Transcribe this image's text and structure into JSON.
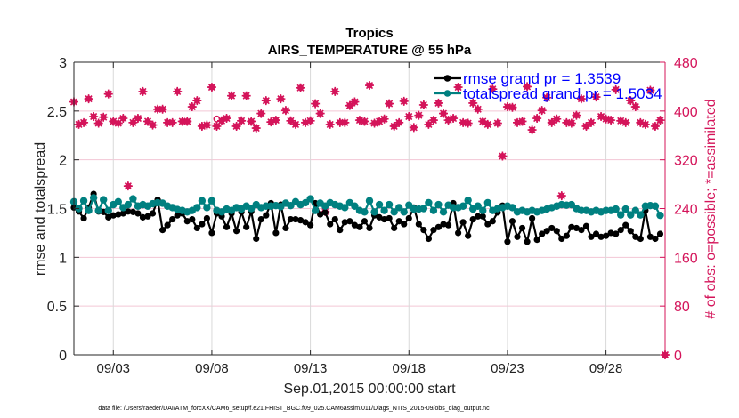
{
  "chart_data": {
    "type": "line",
    "title": "Tropics",
    "subtitle": "AIRS_TEMPERATURE @ 55 hPa",
    "xlabel": "Sep.01,2015 00:00:00 start",
    "ylabel": "rmse and totalspread",
    "ylabel_right": "# of obs: o=possible; *=assimilated",
    "x_units": "days since Sep.01,2015 00:00:00",
    "x_step_days": 0.25,
    "xlim": [
      0,
      30
    ],
    "ylim": [
      0,
      3
    ],
    "ylim_right": [
      0,
      480
    ],
    "grid": true,
    "x_ticks": [
      {
        "day": 2,
        "label": "09/03"
      },
      {
        "day": 7,
        "label": "09/08"
      },
      {
        "day": 12,
        "label": "09/13"
      },
      {
        "day": 17,
        "label": "09/18"
      },
      {
        "day": 22,
        "label": "09/23"
      },
      {
        "day": 27,
        "label": "09/28"
      }
    ],
    "y_ticks": [
      {
        "value": 0,
        "label": "0"
      },
      {
        "value": 0.5,
        "label": "0.5"
      },
      {
        "value": 1,
        "label": "1"
      },
      {
        "value": 1.5,
        "label": "1.5"
      },
      {
        "value": 2,
        "label": "2"
      },
      {
        "value": 2.5,
        "label": "2.5"
      },
      {
        "value": 3,
        "label": "3"
      }
    ],
    "y_right_ticks": [
      {
        "value": 0,
        "label": "0"
      },
      {
        "value": 80,
        "label": "80"
      },
      {
        "value": 160,
        "label": "160"
      },
      {
        "value": 240,
        "label": "240"
      },
      {
        "value": 320,
        "label": "320"
      },
      {
        "value": 400,
        "label": "400"
      },
      {
        "value": 480,
        "label": "480"
      }
    ],
    "legend": {
      "position": "top-right",
      "entries": [
        {
          "label": "rmse grand pr = 1.3539",
          "color": "#000000"
        },
        {
          "label": "totalspread grand pr = 1.5034",
          "color": "#008080"
        }
      ]
    },
    "series": [
      {
        "name": "rmse",
        "color": "#000000",
        "values": [
          1.51,
          1.47,
          1.4,
          1.51,
          1.65,
          1.47,
          1.465,
          1.41,
          1.43,
          1.44,
          1.45,
          1.47,
          1.465,
          1.45,
          1.41,
          1.42,
          1.45,
          1.59,
          1.28,
          1.33,
          1.39,
          1.43,
          1.45,
          1.37,
          1.39,
          1.3,
          1.34,
          1.4,
          1.25,
          1.45,
          1.42,
          1.31,
          1.45,
          1.27,
          1.465,
          1.31,
          1.47,
          1.19,
          1.39,
          1.43,
          1.555,
          1.25,
          1.54,
          1.3,
          1.39,
          1.39,
          1.38,
          1.36,
          1.33,
          1.555,
          1.44,
          1.46,
          1.34,
          1.39,
          1.28,
          1.36,
          1.37,
          1.33,
          1.31,
          1.37,
          1.3,
          1.43,
          1.41,
          1.39,
          1.4,
          1.3,
          1.37,
          1.34,
          1.4,
          1.51,
          1.34,
          1.28,
          1.19,
          1.28,
          1.31,
          1.34,
          1.33,
          1.555,
          1.25,
          1.36,
          1.22,
          1.39,
          1.42,
          1.42,
          1.34,
          1.37,
          1.46,
          1.53,
          1.16,
          1.37,
          1.21,
          1.3,
          1.16,
          1.4,
          1.18,
          1.24,
          1.27,
          1.3,
          1.27,
          1.19,
          1.22,
          1.31,
          1.3,
          1.28,
          1.32,
          1.21,
          1.24,
          1.21,
          1.22,
          1.25,
          1.24,
          1.28,
          1.33,
          1.27,
          1.21,
          1.19,
          1.48,
          1.21,
          1.19,
          1.24
        ]
      },
      {
        "name": "totalspread",
        "color": "#008080",
        "values": [
          1.57,
          1.5,
          1.58,
          1.48,
          1.61,
          1.48,
          1.59,
          1.48,
          1.54,
          1.57,
          1.51,
          1.54,
          1.6,
          1.525,
          1.54,
          1.525,
          1.55,
          1.56,
          1.555,
          1.525,
          1.51,
          1.49,
          1.48,
          1.465,
          1.48,
          1.51,
          1.58,
          1.51,
          1.58,
          1.48,
          1.465,
          1.495,
          1.48,
          1.51,
          1.495,
          1.525,
          1.5,
          1.54,
          1.51,
          1.525,
          1.525,
          1.53,
          1.52,
          1.555,
          1.53,
          1.57,
          1.54,
          1.56,
          1.6,
          1.48,
          1.555,
          1.525,
          1.56,
          1.54,
          1.525,
          1.51,
          1.56,
          1.525,
          1.48,
          1.465,
          1.58,
          1.465,
          1.54,
          1.48,
          1.54,
          1.465,
          1.51,
          1.465,
          1.535,
          1.495,
          1.495,
          1.5,
          1.56,
          1.48,
          1.54,
          1.465,
          1.535,
          1.51,
          1.51,
          1.525,
          1.585,
          1.495,
          1.525,
          1.48,
          1.56,
          1.48,
          1.5,
          1.51,
          1.525,
          1.51,
          1.465,
          1.48,
          1.465,
          1.48,
          1.465,
          1.48,
          1.495,
          1.51,
          1.525,
          1.54,
          1.535,
          1.54,
          1.5,
          1.48,
          1.48,
          1.465,
          1.48,
          1.465,
          1.48,
          1.48,
          1.495,
          1.435,
          1.495,
          1.435,
          1.48,
          1.435,
          1.525,
          1.53,
          1.525,
          1.43
        ]
      }
    ],
    "obs": {
      "color": "#d4145a",
      "assimilated": [
        415,
        378,
        381,
        420,
        391,
        380,
        390,
        428,
        383,
        380,
        388,
        277,
        381,
        388,
        432,
        383,
        377,
        403,
        403,
        381,
        381,
        432,
        383,
        383,
        407,
        417,
        375,
        377,
        439,
        375,
        384,
        388,
        425,
        375,
        384,
        425,
        383,
        372,
        396,
        417,
        382,
        385,
        420,
        401,
        384,
        378,
        438,
        381,
        384,
        412,
        396,
        235,
        378,
        432,
        381,
        381,
        409,
        415,
        385,
        383,
        442,
        380,
        383,
        387,
        412,
        375,
        381,
        416,
        391,
        373,
        393,
        410,
        378,
        385,
        413,
        396,
        385,
        388,
        439,
        381,
        380,
        413,
        403,
        383,
        378,
        436,
        380,
        326,
        407,
        406,
        381,
        383,
        440,
        369,
        388,
        401,
        422,
        381,
        387,
        261,
        381,
        380,
        393,
        420,
        375,
        381,
        423,
        391,
        387,
        385,
        435,
        384,
        381,
        417,
        407,
        381,
        378,
        434,
        375,
        385,
        0
      ],
      "possible": [
        415,
        378,
        381,
        420,
        391,
        380,
        390,
        428,
        383,
        380,
        388,
        277,
        381,
        388,
        432,
        383,
        377,
        403,
        403,
        381,
        381,
        432,
        383,
        383,
        407,
        417,
        375,
        377,
        439,
        387,
        384,
        388,
        425,
        375,
        384,
        425,
        383,
        372,
        396,
        417,
        382,
        385,
        420,
        401,
        384,
        378,
        438,
        381,
        384,
        412,
        396,
        235,
        378,
        432,
        381,
        381,
        409,
        415,
        385,
        383,
        442,
        380,
        383,
        387,
        412,
        375,
        381,
        416,
        391,
        373,
        393,
        410,
        378,
        385,
        413,
        396,
        385,
        388,
        439,
        381,
        380,
        413,
        403,
        383,
        378,
        436,
        380,
        326,
        407,
        406,
        381,
        383,
        440,
        369,
        388,
        401,
        422,
        381,
        387,
        261,
        381,
        380,
        393,
        420,
        375,
        381,
        423,
        391,
        387,
        385,
        435,
        384,
        381,
        417,
        407,
        381,
        378,
        434,
        375,
        385,
        0
      ]
    }
  },
  "footer": {
    "data_file": "data file: /Users/raeder/DAI/ATM_forcXX/CAM6_setup/f.e21.FHIST_BGC.f09_025.CAM6assim.011/Diags_NTrS_2015-09/obs_diag_output.nc"
  }
}
